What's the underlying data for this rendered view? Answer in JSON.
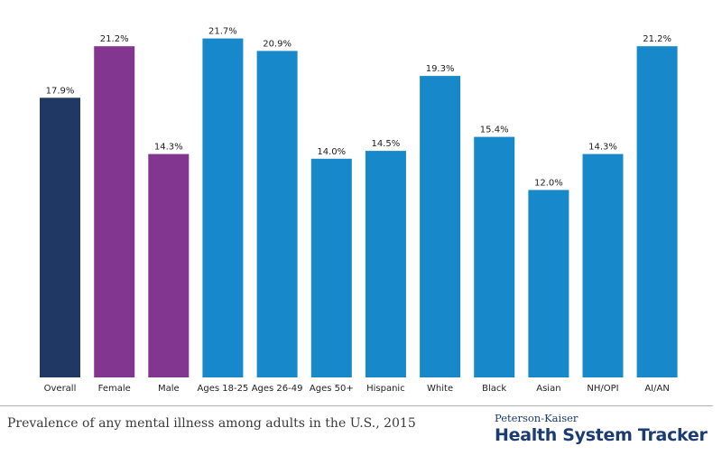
{
  "chart_data": {
    "type": "bar",
    "categories": [
      "Overall",
      "Female",
      "Male",
      "Ages 18-25",
      "Ages 26-49",
      "Ages 50+",
      "Hispanic",
      "White",
      "Black",
      "Asian",
      "NH/OPI",
      "AI/AN"
    ],
    "values": [
      17.9,
      21.2,
      14.3,
      21.7,
      20.9,
      14.0,
      14.5,
      19.3,
      15.4,
      12.0,
      14.3,
      21.2
    ],
    "value_labels": [
      "17.9%",
      "21.2%",
      "14.3%",
      "21.7%",
      "20.9%",
      "14.0%",
      "14.5%",
      "19.3%",
      "15.4%",
      "12.0%",
      "14.3%",
      "21.2%"
    ],
    "colors": [
      "#203864",
      "#83368f",
      "#83368f",
      "#1789cb",
      "#1789cb",
      "#1789cb",
      "#1789cb",
      "#1789cb",
      "#1789cb",
      "#1789cb",
      "#1789cb",
      "#1789cb"
    ],
    "ylim": [
      0,
      22
    ],
    "title": "",
    "xlabel": "",
    "ylabel": ""
  },
  "caption": "Prevalence of any mental illness among adults in the U.S., 2015",
  "brand": {
    "top": "Peterson-Kaiser",
    "main": "Health System Tracker"
  }
}
